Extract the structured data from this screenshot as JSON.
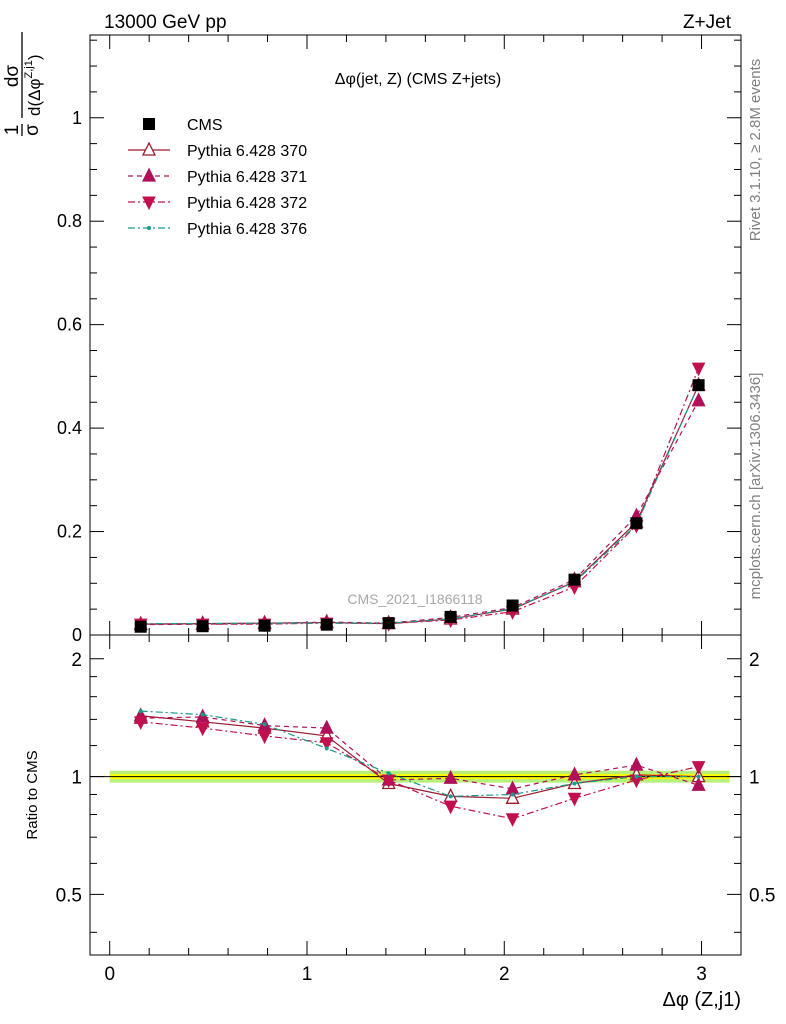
{
  "header": {
    "left": "13000 GeV pp",
    "right": "Z+Jet"
  },
  "side_labels": {
    "rivet": "Rivet 3.1.10, ≥ 2.8M events",
    "mcplots": "mcplots.cern.ch [arXiv:1306.3436]"
  },
  "watermark": "CMS_2021_I1866118",
  "colors": {
    "cms": "#000000",
    "p370": "#9a1b2e",
    "p371": "#b0105a",
    "p372": "#c0104e",
    "p376": "#1a9a8a",
    "band_inner": "#ffff00",
    "band_outer": "#b6f07a"
  },
  "chart_data": [
    {
      "type": "scatter",
      "panel": "main",
      "title": "Δφ(jet, Z) (CMS Z+jets)",
      "xlabel": "Δφ (Z,j1)",
      "ylabel_parts": {
        "one": "1",
        "sigma": "σ",
        "numerator": "dσ",
        "denominator": "d(Δφ",
        "superscript": "Z,j1",
        "close": ")"
      },
      "xlim": [
        -0.1,
        3.2
      ],
      "ylim": [
        0,
        1.16
      ],
      "y_ticks": [
        0,
        0.2,
        0.4,
        0.6,
        0.8,
        1
      ],
      "y_tick_labels": [
        "0",
        "0.2",
        "0.4",
        "0.6",
        "0.8",
        "1"
      ],
      "legend_position": "top-left",
      "x": [
        0.157,
        0.471,
        0.785,
        1.1,
        1.414,
        1.728,
        2.042,
        2.356,
        2.67,
        2.985
      ],
      "series": [
        {
          "name": "CMS",
          "key": "cms",
          "marker": "square",
          "line": "none",
          "values": [
            0.016,
            0.017,
            0.018,
            0.02,
            0.023,
            0.035,
            0.057,
            0.107,
            0.216,
            0.483
          ]
        },
        {
          "name": "Pythia 6.428 370",
          "key": "p370",
          "marker": "triangle-up-open",
          "line": "solid",
          "values": [
            0.021,
            0.022,
            0.023,
            0.024,
            0.022,
            0.031,
            0.05,
            0.103,
            0.218,
            0.483
          ]
        },
        {
          "name": "Pythia 6.428 371",
          "key": "p371",
          "marker": "triangle-up",
          "line": "dashed",
          "values": [
            0.02,
            0.021,
            0.022,
            0.025,
            0.023,
            0.034,
            0.053,
            0.107,
            0.23,
            0.453
          ]
        },
        {
          "name": "Pythia 6.428 372",
          "key": "p372",
          "marker": "triangle-down",
          "line": "dashdot",
          "values": [
            0.021,
            0.021,
            0.021,
            0.023,
            0.022,
            0.029,
            0.045,
            0.093,
            0.212,
            0.516
          ]
        },
        {
          "name": "Pythia 6.428 376",
          "key": "p376",
          "marker": "dot",
          "line": "dashdot",
          "values": [
            0.022,
            0.022,
            0.023,
            0.023,
            0.023,
            0.031,
            0.051,
            0.102,
            0.213,
            0.484
          ]
        }
      ]
    },
    {
      "type": "scatter",
      "panel": "ratio",
      "ylabel": "Ratio to CMS",
      "xlabel": "Δφ (Z,j1)",
      "xlim": [
        -0.1,
        3.2
      ],
      "ylim": [
        0.35,
        2.3
      ],
      "x_ticks": [
        0,
        1,
        2,
        3
      ],
      "x_tick_labels": [
        "0",
        "1",
        "2",
        "3"
      ],
      "y_ticks": [
        0.5,
        1,
        2
      ],
      "y_tick_labels": [
        "0.5",
        "1",
        "2"
      ],
      "x": [
        0.157,
        0.471,
        0.785,
        1.1,
        1.414,
        1.728,
        2.042,
        2.356,
        2.67,
        2.985
      ],
      "band": {
        "inner": 0.015,
        "outer": 0.035
      },
      "series": [
        {
          "name": "Pythia 6.428 370",
          "key": "p370",
          "marker": "triangle-up-open",
          "line": "solid",
          "values": [
            1.43,
            1.38,
            1.33,
            1.27,
            0.96,
            0.89,
            0.88,
            0.96,
            1.01,
            1.0
          ]
        },
        {
          "name": "Pythia 6.428 371",
          "key": "p371",
          "marker": "triangle-up",
          "line": "dashed",
          "values": [
            1.41,
            1.42,
            1.35,
            1.33,
            0.98,
            0.99,
            0.93,
            1.01,
            1.07,
            0.95
          ]
        },
        {
          "name": "Pythia 6.428 372",
          "key": "p372",
          "marker": "triangle-down",
          "line": "dashdot",
          "values": [
            1.38,
            1.33,
            1.27,
            1.22,
            0.98,
            0.84,
            0.78,
            0.88,
            0.98,
            1.06
          ]
        },
        {
          "name": "Pythia 6.428 376",
          "key": "p376",
          "marker": "dot",
          "line": "dashdot",
          "values": [
            1.47,
            1.44,
            1.36,
            1.18,
            1.02,
            0.89,
            0.9,
            0.96,
            1.0,
            1.0
          ]
        }
      ]
    }
  ]
}
